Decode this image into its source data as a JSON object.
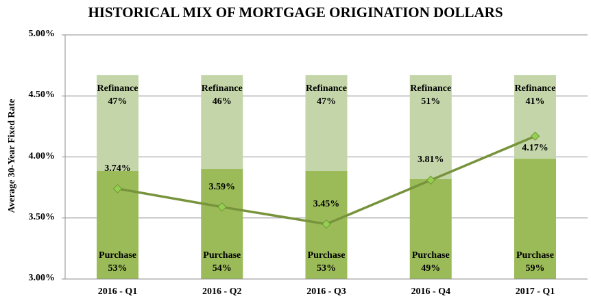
{
  "chart_data": {
    "type": "bar",
    "title": "HISTORICAL MIX OF MORTGAGE ORIGINATION DOLLARS",
    "xlabel": "",
    "ylabel": "Average 30-Year Fixed Rate",
    "ylim": [
      3.0,
      5.0
    ],
    "yticks": [
      "3.00%",
      "3.50%",
      "4.00%",
      "4.50%",
      "5.00%"
    ],
    "grid": true,
    "categories": [
      "2016 - Q1",
      "2016 - Q2",
      "2016 - Q3",
      "2016 - Q4",
      "2017 - Q1"
    ],
    "series": [
      {
        "name": "Purchase",
        "kind": "stacked-bar-share",
        "values": [
          53,
          54,
          53,
          49,
          59
        ],
        "labels": [
          "53%",
          "54%",
          "53%",
          "49%",
          "59%"
        ],
        "color": "#9bbb59"
      },
      {
        "name": "Refinance",
        "kind": "stacked-bar-share",
        "values": [
          47,
          46,
          47,
          51,
          41
        ],
        "labels": [
          "47%",
          "46%",
          "47%",
          "51%",
          "41%"
        ],
        "color": "#c4d6a9"
      },
      {
        "name": "Average 30-Year Fixed Rate",
        "kind": "line",
        "values": [
          3.74,
          3.59,
          3.45,
          3.81,
          4.17
        ],
        "labels": [
          "3.74%",
          "3.59%",
          "3.45%",
          "3.81%",
          "4.17%"
        ],
        "color": "#77933c",
        "marker": "diamond",
        "marker_color": "#92d050"
      }
    ],
    "legend": null
  },
  "labels": {
    "purchase": "Purchase",
    "refinance": "Refinance"
  }
}
